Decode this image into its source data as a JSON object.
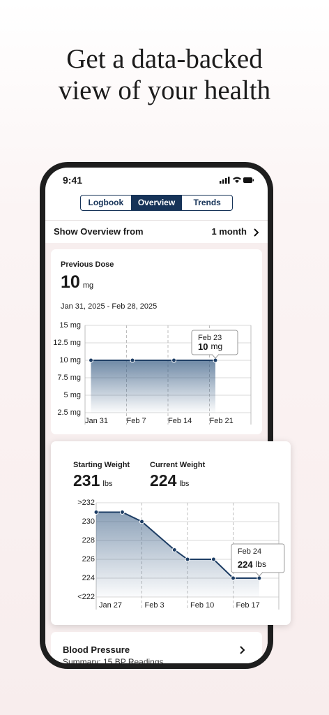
{
  "headline": [
    "Get a data-backed",
    "view of your health"
  ],
  "status_bar": {
    "time": "9:41"
  },
  "tabs": [
    "Logbook",
    "Overview",
    "Trends"
  ],
  "selected_tab": 1,
  "overview_range": {
    "label": "Show Overview from",
    "value": "1 month"
  },
  "dose_card": {
    "title": "Previous Dose",
    "value": 10,
    "unit": "mg",
    "date_range": "Jan 31, 2025 - Feb 28, 2025"
  },
  "weight_card": {
    "starting": {
      "label": "Starting Weight",
      "value": 231,
      "unit": "lbs"
    },
    "current": {
      "label": "Current Weight",
      "value": 224,
      "unit": "lbs"
    }
  },
  "blood_pressure_card": {
    "title": "Blood Pressure",
    "summary": "Summary: 15 BP Readings"
  },
  "chart_data": [
    {
      "type": "area",
      "color": "#1d3d64",
      "x": [
        "Feb 1",
        "Feb 8",
        "Feb 15",
        "Feb 22"
      ],
      "values": [
        10,
        10,
        10,
        10
      ],
      "xlim": [
        "Jan 31",
        "Feb 28"
      ],
      "xticks": [
        "Jan 31",
        "Feb 7",
        "Feb 14",
        "Feb 21"
      ],
      "ylim": [
        2.5,
        15
      ],
      "yticks": [
        {
          "value": 2.5,
          "label": "2.5 mg"
        },
        {
          "value": 5,
          "label": "5 mg"
        },
        {
          "value": 7.5,
          "label": "7.5 mg"
        },
        {
          "value": 10,
          "label": "10 mg"
        },
        {
          "value": 12.5,
          "label": "12.5 mg"
        },
        {
          "value": 15,
          "label": "15 mg"
        }
      ],
      "tooltip": {
        "date": "Feb 23",
        "value": 10,
        "unit": "mg"
      }
    },
    {
      "type": "area",
      "color": "#1d3d64",
      "x": [
        "Jan 27",
        "Jan 31",
        "Feb 3",
        "Feb 8",
        "Feb 10",
        "Feb 14",
        "Feb 17",
        "Feb 21"
      ],
      "values": [
        231,
        231,
        230,
        227,
        226,
        226,
        224,
        224
      ],
      "xlim": [
        "Jan 27",
        "Feb 24"
      ],
      "xticks": [
        "Jan 27",
        "Feb 3",
        "Feb 10",
        "Feb 17"
      ],
      "ylim": [
        222,
        232
      ],
      "yticks": [
        {
          "value": 222,
          "label": "<222"
        },
        224,
        226,
        228,
        230,
        {
          "value": 232,
          "label": ">232"
        }
      ],
      "tooltip": {
        "date": "Feb 24",
        "value": 224,
        "unit": "lbs"
      }
    }
  ]
}
